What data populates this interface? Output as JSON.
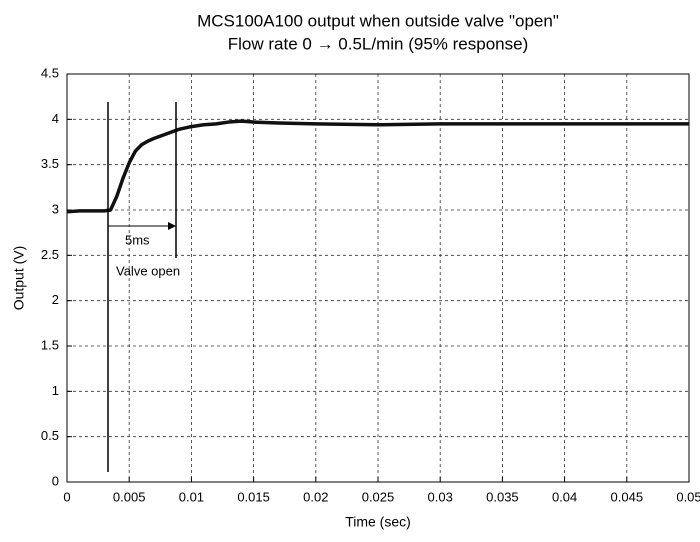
{
  "chart_data": {
    "type": "line",
    "title": "MCS100A100 output when outside valve \"open\"",
    "subtitle": "Flow rate 0 → 0.5L/min (95% response)",
    "x_label": "Time (sec)",
    "y_label": "Output (V)",
    "annotations": [
      "5ms",
      "Valve open"
    ],
    "x": [
      0,
      0.001,
      0.002,
      0.003,
      0.0035,
      0.004,
      0.0045,
      0.005,
      0.0055,
      0.006,
      0.0065,
      0.007,
      0.008,
      0.009,
      0.01,
      0.011,
      0.012,
      0.013,
      0.014,
      0.015,
      0.017,
      0.02,
      0.025,
      0.03,
      0.035,
      0.04,
      0.045,
      0.05
    ],
    "series": [
      {
        "name": "Output",
        "color": "#111111",
        "values": [
          2.98,
          2.99,
          2.99,
          2.99,
          3.0,
          3.15,
          3.35,
          3.52,
          3.65,
          3.72,
          3.76,
          3.79,
          3.84,
          3.89,
          3.92,
          3.94,
          3.95,
          3.97,
          3.98,
          3.97,
          3.96,
          3.95,
          3.94,
          3.95,
          3.95,
          3.95,
          3.95,
          3.95
        ]
      }
    ],
    "xlim": [
      0,
      0.05
    ],
    "xticks": [
      0,
      0.005,
      0.01,
      0.015,
      0.02,
      0.025,
      0.03,
      0.035,
      0.04,
      0.045,
      0.05
    ],
    "ylim": [
      0,
      4.5
    ],
    "yticks": [
      0,
      0.5,
      1,
      1.5,
      2,
      2.5,
      3,
      3.5,
      4,
      4.5
    ],
    "grid": true
  }
}
